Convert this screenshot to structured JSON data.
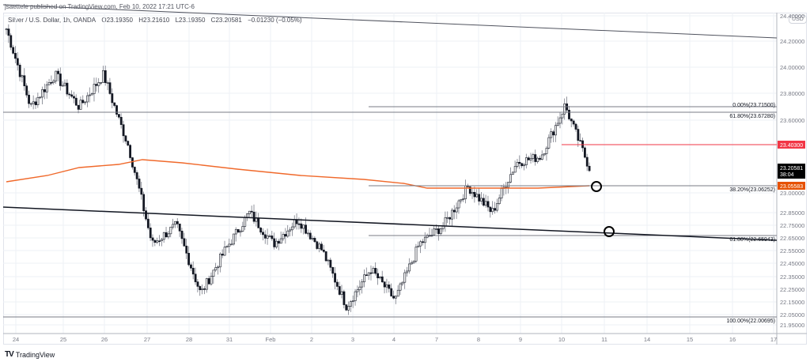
{
  "header": {
    "published": "jsaettele published on TradingView.com, Feb 10, 2022 17:21 UTC-6"
  },
  "legend": {
    "symbol": "Silver / U.S. Dollar, 1h, OANDA",
    "open": "O23.19350",
    "high": "H23.21610",
    "low": "L23.19350",
    "close": "C23.20581",
    "change": "−0.01230 (−0.05%)"
  },
  "axis": {
    "currency": "USD"
  },
  "footer": {
    "logo_mark": "TV",
    "logo_text": "TradingView"
  },
  "colors": {
    "candle": "#131722",
    "wick": "#787b86",
    "ma": "#f0692b",
    "red_line": "#f23645",
    "last_price_bg": "#000000",
    "ma_tag_bg": "#e65100",
    "grid": "#eef1f6",
    "fib": "#787b86"
  },
  "chart_data": {
    "type": "candlestick",
    "title": "Silver / U.S. Dollar, 1h, OANDA",
    "xlabel": "",
    "ylabel": "USD",
    "ylim": [
      21.9,
      24.5
    ],
    "x_ticks": [
      "24",
      "25",
      "26",
      "27",
      "28",
      "31",
      "Feb",
      "2",
      "3",
      "4",
      "7",
      "8",
      "9",
      "10",
      "11",
      "14",
      "15",
      "16",
      "17"
    ],
    "y_ticks": [
      "24.40000",
      "24.20000",
      "24.00000",
      "23.80000",
      "23.60000",
      "23.00000",
      "22.85000",
      "22.75000",
      "22.65000",
      "22.55000",
      "22.45000",
      "22.35000",
      "22.25000",
      "22.15000",
      "22.05000",
      "21.95000"
    ],
    "ohlc_last": {
      "open": 23.1935,
      "high": 23.2161,
      "low": 23.1935,
      "close": 23.20581,
      "change": -0.0123,
      "change_pct": -0.05
    },
    "price_path_approx": [
      {
        "date": "Jan 24",
        "price": 24.3
      },
      {
        "date": "Jan 24",
        "price": 23.7
      },
      {
        "date": "Jan 25",
        "price": 23.95
      },
      {
        "date": "Jan 25",
        "price": 23.7
      },
      {
        "date": "Jan 26",
        "price": 23.95
      },
      {
        "date": "Jan 26",
        "price": 23.4
      },
      {
        "date": "Jan 27",
        "price": 22.6
      },
      {
        "date": "Jan 27",
        "price": 22.75
      },
      {
        "date": "Jan 28",
        "price": 22.2
      },
      {
        "date": "Jan 31",
        "price": 22.55
      },
      {
        "date": "Jan 31",
        "price": 22.85
      },
      {
        "date": "Feb 1",
        "price": 22.6
      },
      {
        "date": "Feb 2",
        "price": 22.8
      },
      {
        "date": "Feb 2",
        "price": 22.55
      },
      {
        "date": "Feb 3",
        "price": 22.1
      },
      {
        "date": "Feb 3",
        "price": 22.4
      },
      {
        "date": "Feb 4",
        "price": 22.15
      },
      {
        "date": "Feb 4",
        "price": 22.6
      },
      {
        "date": "Feb 7",
        "price": 22.75
      },
      {
        "date": "Feb 7",
        "price": 23.05
      },
      {
        "date": "Feb 8",
        "price": 22.85
      },
      {
        "date": "Feb 8",
        "price": 23.25
      },
      {
        "date": "Feb 9",
        "price": 23.3
      },
      {
        "date": "Feb 10",
        "price": 23.715
      },
      {
        "date": "Feb 10",
        "price": 23.206
      }
    ],
    "indicators": [
      {
        "name": "Moving average",
        "color": "#f0692b",
        "last_value": 23.05583
      }
    ],
    "horizontal_levels": [
      {
        "label": "0.00%(23.71500)",
        "value": 23.715
      },
      {
        "label": "61.80%(23.67280)",
        "value": 23.6728
      },
      {
        "label": "38.20%(23.06252)",
        "value": 23.06252
      },
      {
        "label": "61.80%(22.65943)",
        "value": 22.65943
      },
      {
        "label": "100.00%(22.00695)",
        "value": 22.00695
      },
      {
        "label": "red level",
        "value": 23.403
      }
    ],
    "price_tags": [
      {
        "value": "23.40300",
        "color": "#f23645"
      },
      {
        "value": "23.20581",
        "sub": "38:04",
        "color": "#000000"
      },
      {
        "value": "23.05583",
        "color": "#e65100"
      }
    ],
    "trendlines": [
      {
        "from": [
          "Jan 24",
          24.55
        ],
        "to": [
          "Feb 17",
          24.3
        ]
      },
      {
        "from": [
          "Jan 24",
          22.87
        ],
        "to": [
          "Feb 17",
          22.62
        ]
      }
    ],
    "annotations": [
      "circle at 38.20% level (~Feb 10)",
      "circle at lower trendline (~Feb 11)"
    ]
  }
}
